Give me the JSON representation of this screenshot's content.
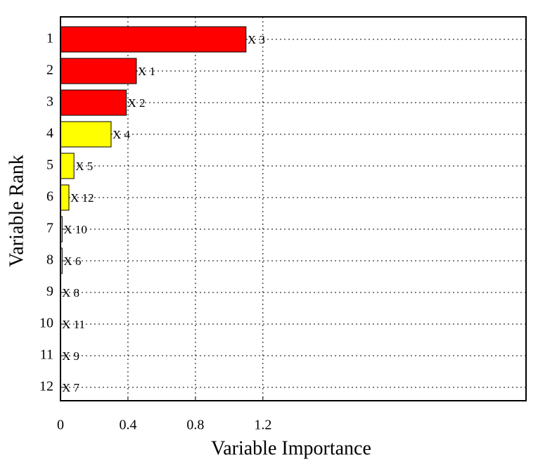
{
  "chart_data": {
    "type": "hbar",
    "xlabel": "Variable Importance",
    "ylabel": "Variable Rank",
    "categories": [
      "1",
      "2",
      "3",
      "4",
      "5",
      "6",
      "7",
      "8",
      "9",
      "10",
      "11",
      "12"
    ],
    "values": [
      1.1,
      0.45,
      0.39,
      0.3,
      0.08,
      0.05,
      0.01,
      0.01,
      0,
      0,
      0,
      0
    ],
    "bar_labels": [
      "X 3",
      "X 1",
      "X 2",
      "X 4",
      "X 5",
      "X 12",
      "X 10",
      "X 6",
      "X 8",
      "X 11",
      "X 9",
      "X 7"
    ],
    "colors": [
      "#ff0000",
      "#ff0000",
      "#ff0000",
      "#ffff00",
      "#ffff00",
      "#ffff00",
      "#ffff00",
      "#ffff00",
      "#ffff00",
      "#ffff00",
      "#ffff00",
      "#ffff00"
    ],
    "xlim": [
      0,
      2.76
    ],
    "xticks": [
      0,
      0.4,
      0.8,
      1.2
    ],
    "grid": true
  }
}
